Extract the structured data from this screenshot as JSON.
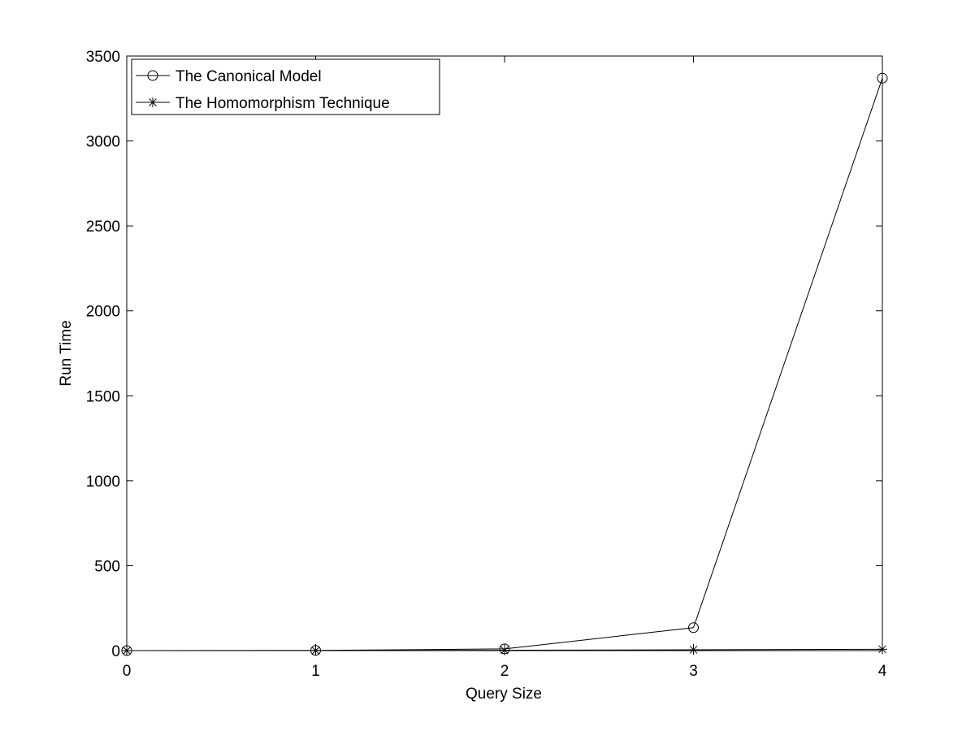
{
  "chart_data": {
    "type": "line",
    "title": "",
    "xlabel": "Query Size",
    "ylabel": "Run Time",
    "xlim": [
      0,
      4
    ],
    "ylim": [
      0,
      3500
    ],
    "xticks": [
      0,
      1,
      2,
      3,
      4
    ],
    "yticks": [
      0,
      500,
      1000,
      1500,
      2000,
      2500,
      3000,
      3500
    ],
    "xtick_labels": [
      "0",
      "1",
      "2",
      "3",
      "4"
    ],
    "ytick_labels": [
      "0",
      "500",
      "1000",
      "1500",
      "2000",
      "2500",
      "3000",
      "3500"
    ],
    "grid": false,
    "legend_position": "top-left",
    "x": [
      0,
      1,
      2,
      3,
      4
    ],
    "series": [
      {
        "name": "The Canonical Model",
        "marker": "circle",
        "color": "#000000",
        "values": [
          0,
          1,
          10,
          135,
          3370
        ]
      },
      {
        "name": "The Homomorphism Technique",
        "marker": "asterisk",
        "color": "#000000",
        "values": [
          0,
          0,
          2,
          5,
          8
        ]
      }
    ]
  }
}
